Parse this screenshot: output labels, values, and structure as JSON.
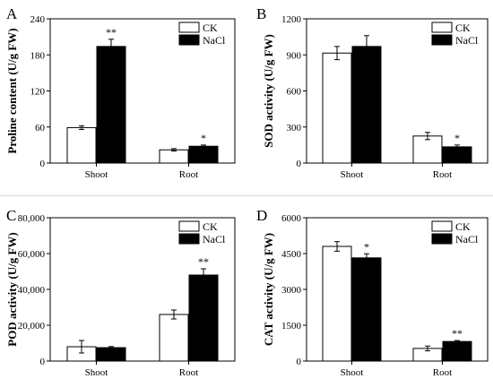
{
  "colors": {
    "ck": "#ffffff",
    "nacl": "#000000",
    "axis": "#000000",
    "divider": "#d9d9d9"
  },
  "chart_data": [
    {
      "panel_letter": "A",
      "type": "bar",
      "categories": [
        "Shoot",
        "Root"
      ],
      "series": [
        {
          "name": "CK",
          "values": [
            59,
            22
          ],
          "errors": [
            3,
            2
          ]
        },
        {
          "name": "NaCl",
          "values": [
            194,
            28
          ],
          "errors": [
            12,
            2
          ]
        }
      ],
      "significance": [
        [
          "",
          ""
        ],
        [
          "**",
          "*"
        ]
      ],
      "xlabel": "",
      "ylabel": "Proline content (U/g FW)",
      "ylim": [
        0,
        240
      ],
      "yticks": [
        0,
        60,
        120,
        180,
        240
      ],
      "ytick_labels": [
        "0",
        "60",
        "120",
        "180",
        "240"
      ],
      "legend": "top-right"
    },
    {
      "panel_letter": "B",
      "type": "bar",
      "categories": [
        "Shoot",
        "Root"
      ],
      "series": [
        {
          "name": "CK",
          "values": [
            915,
            225
          ],
          "errors": [
            55,
            30
          ]
        },
        {
          "name": "NaCl",
          "values": [
            970,
            135
          ],
          "errors": [
            90,
            15
          ]
        }
      ],
      "significance": [
        [
          "",
          ""
        ],
        [
          "",
          "*"
        ]
      ],
      "xlabel": "",
      "ylabel": "SOD activity (U/g FW)",
      "ylim": [
        0,
        1200
      ],
      "yticks": [
        0,
        300,
        600,
        900,
        1200
      ],
      "ytick_labels": [
        "0",
        "300",
        "600",
        "900",
        "1200"
      ],
      "legend": "top-right"
    },
    {
      "panel_letter": "C",
      "type": "bar",
      "categories": [
        "Shoot",
        "Root"
      ],
      "series": [
        {
          "name": "CK",
          "values": [
            8000,
            26000
          ],
          "errors": [
            3500,
            2500
          ]
        },
        {
          "name": "NaCl",
          "values": [
            7500,
            48000
          ],
          "errors": [
            600,
            3500
          ]
        }
      ],
      "significance": [
        [
          "",
          ""
        ],
        [
          "",
          "**"
        ]
      ],
      "xlabel": "",
      "ylabel": "POD activity (U/g FW)",
      "ylim": [
        0,
        80000
      ],
      "yticks": [
        0,
        20000,
        40000,
        60000,
        80000
      ],
      "ytick_labels": [
        "0",
        "20,000",
        "40,000",
        "60,000",
        "80,000"
      ],
      "legend": "top-right"
    },
    {
      "panel_letter": "D",
      "type": "bar",
      "categories": [
        "Shoot",
        "Root"
      ],
      "series": [
        {
          "name": "CK",
          "values": [
            4800,
            530
          ],
          "errors": [
            200,
            100
          ]
        },
        {
          "name": "NaCl",
          "values": [
            4320,
            820
          ],
          "errors": [
            170,
            40
          ]
        }
      ],
      "significance": [
        [
          "",
          ""
        ],
        [
          "*",
          "**"
        ]
      ],
      "xlabel": "",
      "ylabel": "CAT activity (U/g FW)",
      "ylim": [
        0,
        6000
      ],
      "yticks": [
        0,
        1500,
        3000,
        4500,
        6000
      ],
      "ytick_labels": [
        "0",
        "1500",
        "3000",
        "4500",
        "6000"
      ],
      "legend": "top-right"
    }
  ]
}
